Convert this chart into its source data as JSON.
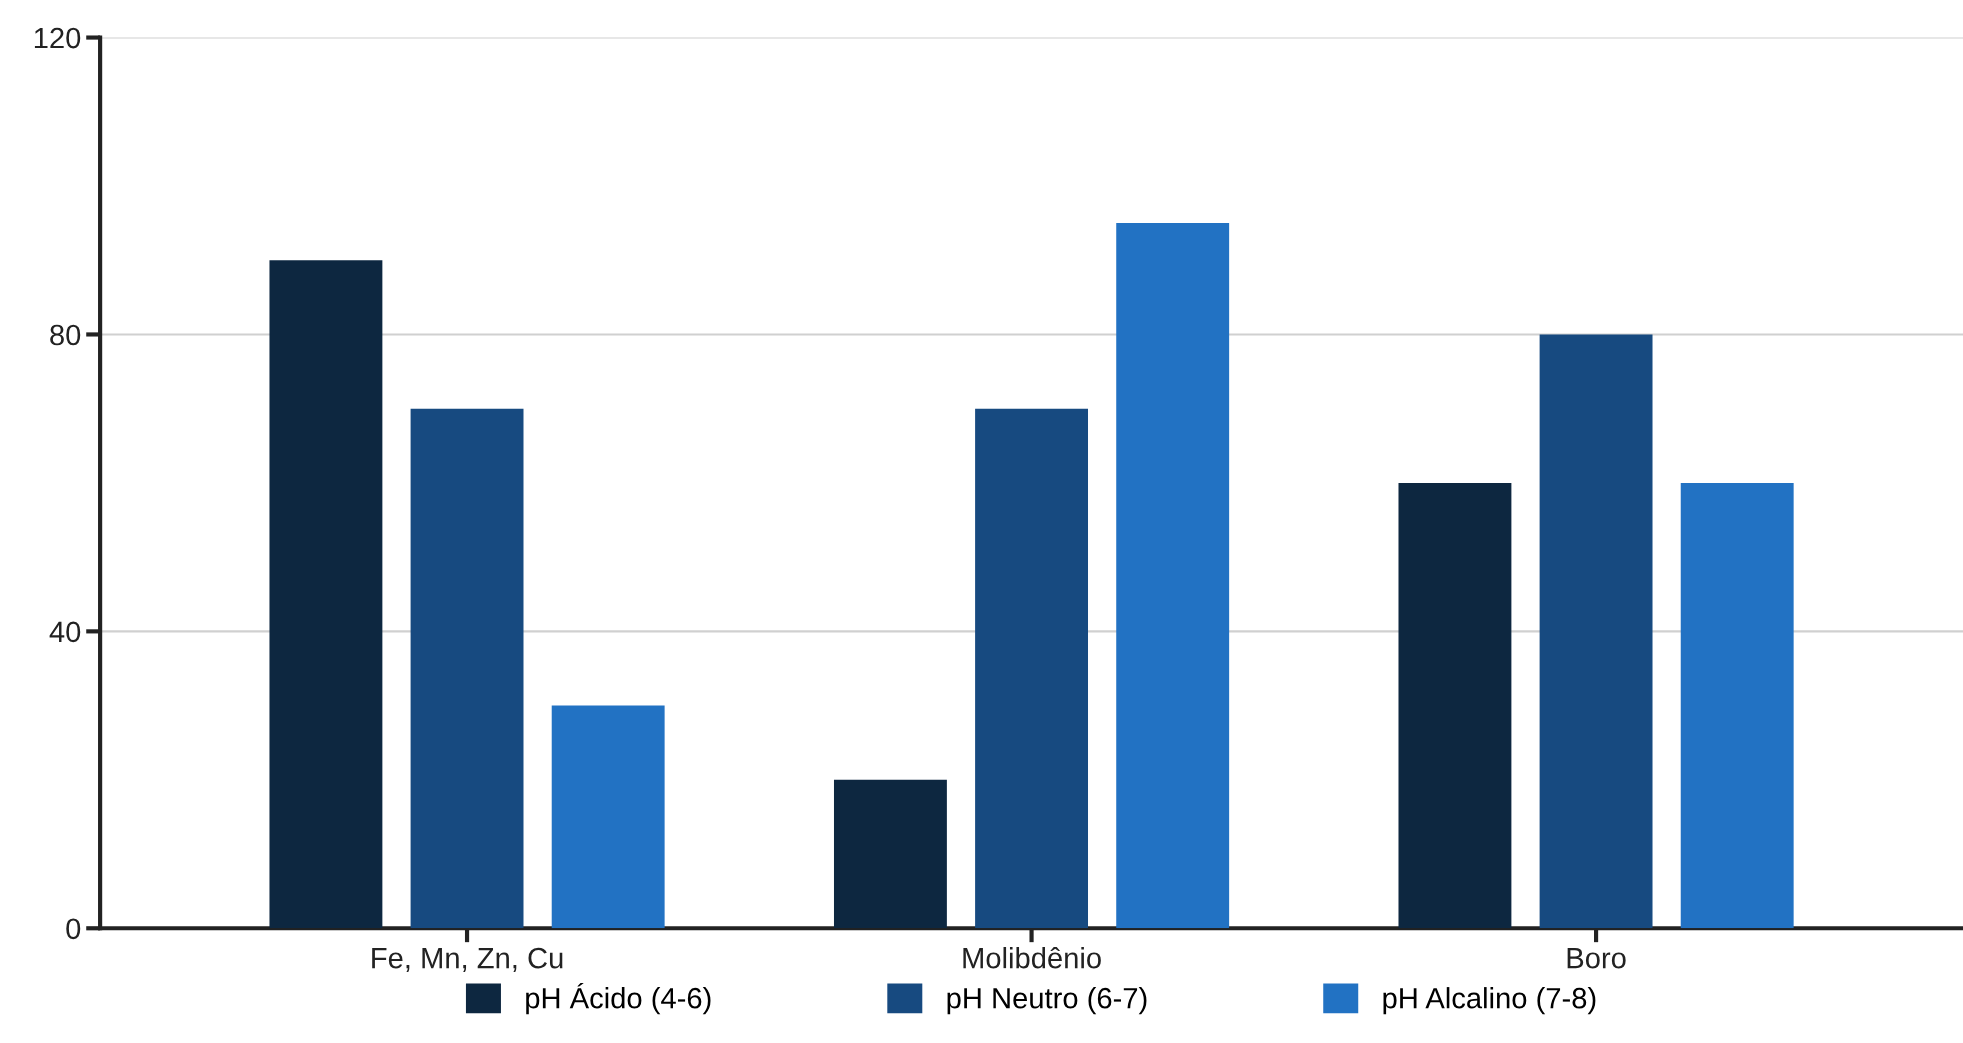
{
  "chart_data": {
    "type": "bar",
    "categories": [
      "Fe, Mn, Zn, Cu",
      "Molibdênio",
      "Boro"
    ],
    "series": [
      {
        "name": "pH Ácido (4-6)",
        "color": "#0d2740",
        "values": [
          90,
          20,
          60
        ]
      },
      {
        "name": "pH Neutro (6-7)",
        "color": "#174a80",
        "values": [
          70,
          70,
          80
        ]
      },
      {
        "name": "pH Alcalino (7-8)",
        "color": "#2272c3",
        "values": [
          30,
          95,
          60
        ]
      }
    ],
    "ylim": [
      0,
      120
    ],
    "yticks": [
      0,
      40,
      80,
      120
    ],
    "grid": "y",
    "legend": "bottom"
  }
}
